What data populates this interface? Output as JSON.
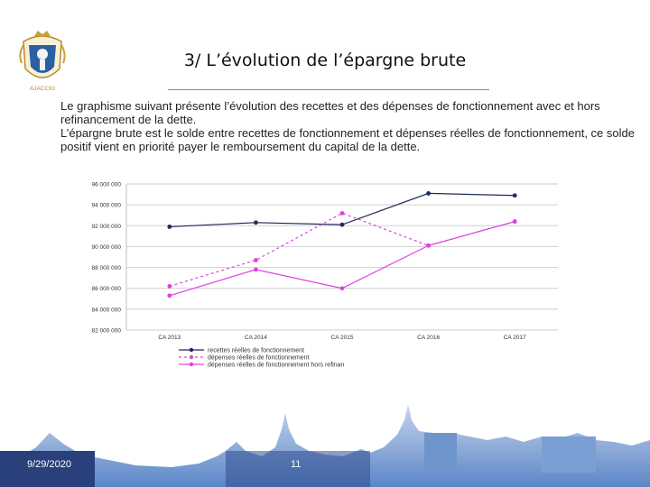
{
  "header": {
    "title": "3/ L’évolution de l’épargne brute",
    "logo_caption": "AJACCIO"
  },
  "intro": {
    "paragraph1": "Le graphisme suivant présente l’évolution des recettes et des dépenses de fonctionnement avec et hors refinancement de la dette.",
    "paragraph2": "L’épargne brute est le solde entre recettes de fonctionnement et dépenses réelles de fonctionnement, ce solde positif vient en priorité payer le remboursement du capital de la dette."
  },
  "chart_data": {
    "type": "line",
    "categories": [
      "CA 2013",
      "CA 2014",
      "CA 2015",
      "CA 2016",
      "CA 2017"
    ],
    "ylim": [
      82000000,
      96000000
    ],
    "yticks": [
      82000000,
      84000000,
      86000000,
      88000000,
      90000000,
      92000000,
      94000000,
      96000000
    ],
    "ytick_labels": [
      "82 000 000",
      "84 000 000",
      "86 000 000",
      "88 000 000",
      "90 000 000",
      "92 000 000",
      "94 000 000",
      "96 000 000"
    ],
    "grid": true,
    "legend_position": "bottom",
    "series": [
      {
        "name": "recettes réelles de fonctionnement",
        "values": [
          91900000.0,
          92300000.0,
          92100000.0,
          95100000.0,
          94900000.0
        ],
        "color": "#1f2a5c",
        "dash": false
      },
      {
        "name": "dépenses réelles de fonctionnement",
        "values": [
          86200000.0,
          88700000.0,
          93200000.0,
          90100000.0,
          92400000.0
        ],
        "color": "#e040e0",
        "dash": true
      },
      {
        "name": "dépenses réelles de fonctionnement hors refinan",
        "values": [
          85300000.0,
          87800000.0,
          86000000.0,
          90100000.0,
          92400000.0
        ],
        "color": "#e040e0",
        "dash": false
      }
    ]
  },
  "footer": {
    "date": "9/29/2020",
    "page": "11"
  }
}
